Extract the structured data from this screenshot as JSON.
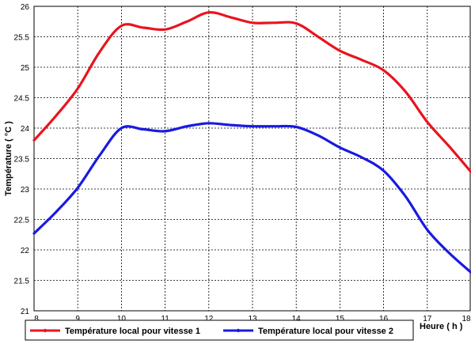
{
  "chart_data": {
    "type": "line",
    "title": "",
    "xlabel": "Heure ( h )",
    "ylabel": "Température ( °C )",
    "xlim": [
      8,
      18
    ],
    "ylim": [
      21,
      26
    ],
    "xticks": [
      "8",
      "9",
      "10",
      "11",
      "12",
      "13",
      "14",
      "15",
      "16",
      "17",
      "18"
    ],
    "yticks": [
      "21",
      "21.5",
      "22",
      "22.5",
      "23",
      "23.5",
      "24",
      "24.5",
      "25",
      "25.5",
      "26"
    ],
    "grid": true,
    "legend_position": "bottom",
    "series": [
      {
        "name": "Température local pour vitesse 1",
        "color": "#e8141e",
        "x": [
          8,
          8.5,
          9,
          9.5,
          10,
          10.5,
          11,
          11.5,
          12,
          12.5,
          13,
          13.5,
          14,
          14.5,
          15,
          15.5,
          16,
          16.5,
          17,
          17.5,
          18
        ],
        "y": [
          23.8,
          24.2,
          24.65,
          25.25,
          25.68,
          25.65,
          25.62,
          25.75,
          25.9,
          25.82,
          25.73,
          25.73,
          25.72,
          25.5,
          25.27,
          25.12,
          24.95,
          24.6,
          24.1,
          23.7,
          23.28
        ]
      },
      {
        "name": "Température local pour vitesse 2",
        "color": "#1a1ae0",
        "x": [
          8,
          8.5,
          9,
          9.5,
          10,
          10.5,
          11,
          11.5,
          12,
          12.5,
          13,
          13.5,
          14,
          14.5,
          15,
          15.5,
          16,
          16.5,
          17,
          17.5,
          18
        ],
        "y": [
          22.27,
          22.62,
          23.02,
          23.55,
          24.0,
          23.98,
          23.95,
          24.03,
          24.08,
          24.05,
          24.03,
          24.03,
          24.02,
          23.88,
          23.68,
          23.52,
          23.3,
          22.88,
          22.33,
          21.95,
          21.63
        ]
      }
    ]
  }
}
